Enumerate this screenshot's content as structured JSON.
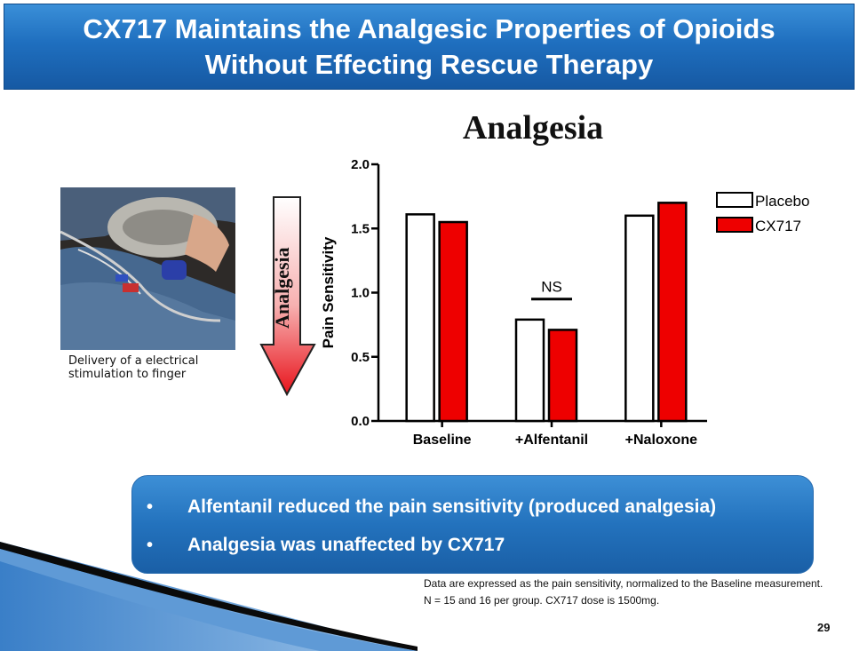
{
  "slide": {
    "title_line1": "CX717 Maintains the Analgesic Properties of Opioids",
    "title_line2": "Without Effecting Rescue Therapy",
    "photo_caption": "Delivery of a electrical stimulation to finger",
    "arrow_label": "Analgesia",
    "bullets": [
      "Alfentanil reduced the pain sensitivity (produced analgesia)",
      "Analgesia was unaffected by CX717"
    ],
    "bullet_marker": "•",
    "footnotes": [
      "Data are expressed as the pain sensitivity, normalized to the Baseline measurement.",
      "N = 15 and 16 per group. CX717 dose is 1500mg."
    ],
    "page_number": "29",
    "colors": {
      "title_bar": "#1f6fbf",
      "bullet_box": "#2372bd",
      "arrow_red": "#e8141c",
      "cx717_red": "#ee0000"
    }
  },
  "chart_data": {
    "type": "bar",
    "title": "Analgesia",
    "ylabel": "Pain Sensitivity",
    "xlabel": "",
    "categories": [
      "Baseline",
      "+Alfentanil",
      "+Naloxone"
    ],
    "series": [
      {
        "name": "Placebo",
        "values": [
          1.61,
          0.79,
          1.6
        ],
        "color": "#ffffff"
      },
      {
        "name": "CX717",
        "values": [
          1.55,
          0.71,
          1.7
        ],
        "color": "#ee0000"
      }
    ],
    "ylim": [
      0,
      2.0
    ],
    "yticks": [
      "0.0",
      "0.5",
      "1.0",
      "1.5",
      "2.0"
    ],
    "annotation": "NS",
    "grid": false,
    "legend_position": "top-right"
  }
}
